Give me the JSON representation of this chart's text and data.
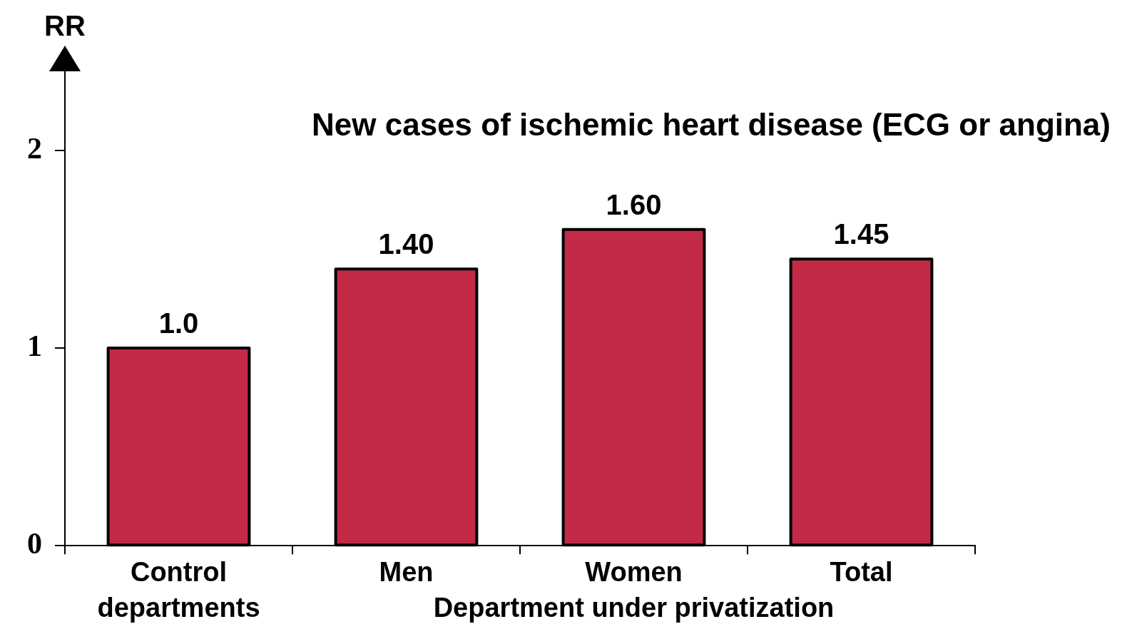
{
  "chart_data": {
    "type": "bar",
    "title": "New cases of ischemic heart disease (ECG or angina)",
    "ylabel": "RR",
    "xlabel": "Department under privatization",
    "categories": [
      "Control departments",
      "Men",
      "Women",
      "Total"
    ],
    "values": [
      1.0,
      1.4,
      1.6,
      1.45
    ],
    "value_labels": [
      "1.0",
      "1.40",
      "1.60",
      "1.45"
    ],
    "color": "#c32a48",
    "ylim": [
      0,
      2.4
    ],
    "yticks": [
      0,
      1,
      2
    ],
    "grid": false,
    "legend": false
  }
}
